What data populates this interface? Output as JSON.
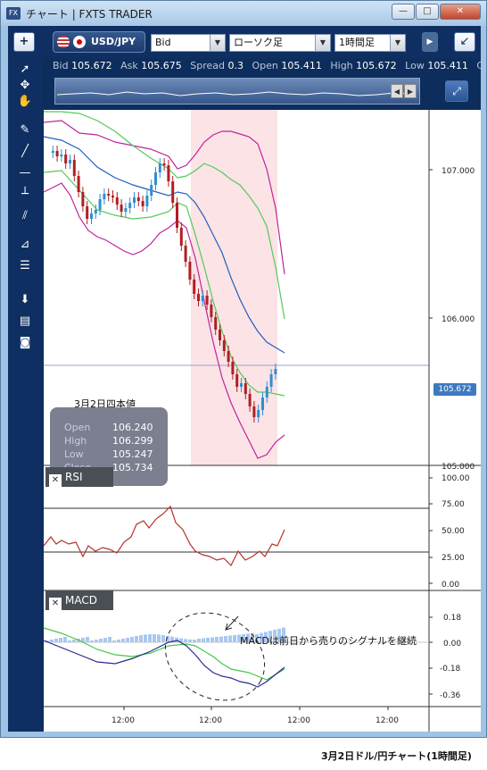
{
  "window": {
    "app_icon": "FX",
    "title": "チャート | FXTS TRADER",
    "minimize": "—",
    "maximize": "□",
    "close": "✕"
  },
  "toolbar": {
    "add_label": "+",
    "pair": "USD/JPY",
    "price_type": "Bid",
    "chart_type": "ローソク足",
    "timeframe": "1時間足",
    "collapse_icon": "↙"
  },
  "quote": {
    "bid_label": "Bid",
    "bid": "105.672",
    "ask_label": "Ask",
    "ask": "105.675",
    "spread_label": "Spread",
    "spread": "0.3",
    "open_label": "Open",
    "open": "105.411",
    "high_label": "High",
    "high": "105.672",
    "low_label": "Low",
    "low": "105.411",
    "cut_label": "C"
  },
  "left_tools": [
    "cursor-icon",
    "crosshair-icon",
    "hand-icon",
    "pen-icon",
    "trend-line-icon",
    "horizontal-line-icon",
    "vertical-line-icon",
    "channel-icon",
    "fan-icon",
    "fibonacci-icon",
    "download-icon",
    "list-icon",
    "camera-icon"
  ],
  "main_chart": {
    "price_axis": [
      "107.000",
      "106.000",
      "105.000"
    ],
    "current_price": "105.672",
    "ohlc_title": "3月2日四本値",
    "ohlc": [
      {
        "label": "Open",
        "value": "106.240"
      },
      {
        "label": "High",
        "value": "106.299"
      },
      {
        "label": "Low",
        "value": "105.247"
      },
      {
        "label": "Close",
        "value": "105.734"
      }
    ]
  },
  "rsi": {
    "label": "RSI",
    "axis": [
      "100.00",
      "75.00",
      "50.00",
      "25.00",
      "0.00"
    ]
  },
  "macd": {
    "label": "MACD",
    "axis": [
      "0.18",
      "0.00",
      "-0.18",
      "-0.36"
    ],
    "annotation": "MACDは前日から売りのシグナルを継続"
  },
  "time_axis": [
    "12:00",
    "12:00",
    "12:00",
    "12:00"
  ],
  "caption": "3月2日ドル/円チャート(1時間足)",
  "colors": {
    "up_candle": "#2e8fd0",
    "down_candle": "#b01e22",
    "bollinger_outer": "#c0259b",
    "bollinger_inner": "#55c95a",
    "moving_average": "#2060c0",
    "highlight": "#fbe3e6",
    "rsi_line": "#b5332e",
    "macd_line": "#2b2a8e",
    "signal_line": "#46c746",
    "histogram": "#a9c8f0"
  }
}
